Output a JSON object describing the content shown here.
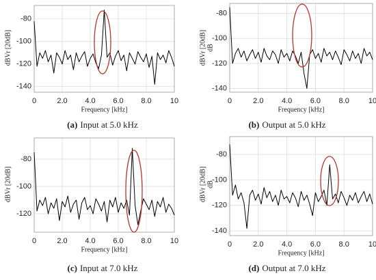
{
  "chart_data": [
    {
      "type": "line",
      "xlabel": "Frequency [kHz]",
      "ylabel": "dBVr [20dB]",
      "caption_label": "(a)",
      "caption": "Input at 5.0 kHz",
      "x": [
        0,
        0.2,
        0.4,
        0.6,
        0.8,
        1,
        1.2,
        1.4,
        1.6,
        1.8,
        2,
        2.2,
        2.4,
        2.6,
        2.8,
        3,
        3.2,
        3.4,
        3.6,
        3.8,
        4,
        4.2,
        4.4,
        4.6,
        4.8,
        5,
        5.2,
        5.4,
        5.6,
        5.8,
        6,
        6.2,
        6.4,
        6.6,
        6.8,
        7,
        7.2,
        7.4,
        7.6,
        7.8,
        8,
        8.2,
        8.4,
        8.6,
        8.8,
        9,
        9.2,
        9.4,
        9.6,
        9.8,
        10
      ],
      "series": [
        {
          "color": "#000000",
          "values": [
            -82,
            -122,
            -110,
            -115,
            -108,
            -118,
            -112,
            -128,
            -110,
            -114,
            -120,
            -108,
            -116,
            -112,
            -125,
            -110,
            -118,
            -113,
            -109,
            -122,
            -115,
            -111,
            -119,
            -124,
            -112,
            -72,
            -114,
            -110,
            -121,
            -113,
            -108,
            -117,
            -112,
            -126,
            -110,
            -115,
            -120,
            -109,
            -114,
            -118,
            -111,
            -123,
            -113,
            -138,
            -110,
            -116,
            -112,
            -119,
            -108,
            -114,
            -122
          ]
        }
      ],
      "xlim": [
        0,
        10
      ],
      "ylim": [
        -145,
        -68
      ],
      "xticks": [
        0,
        {
          "value": 2,
          "label": "2.0"
        },
        {
          "value": 4,
          "label": "4.0"
        },
        {
          "value": 6,
          "label": "6.0"
        },
        {
          "value": 8,
          "label": "8.0"
        },
        10
      ],
      "yticks": [
        -140,
        -120,
        -100,
        -80
      ],
      "grid": true
    },
    {
      "type": "line",
      "xlabel": "Frequency [kHz]",
      "ylabel": "dBVr [20dB]",
      "ylabel2": "dB",
      "caption_label": "(b)",
      "caption": "Output at 5.0 kHz",
      "x": [
        0,
        0.2,
        0.4,
        0.6,
        0.8,
        1,
        1.2,
        1.4,
        1.6,
        1.8,
        2,
        2.2,
        2.4,
        2.6,
        2.8,
        3,
        3.2,
        3.4,
        3.6,
        3.8,
        4,
        4.2,
        4.4,
        4.6,
        4.8,
        5,
        5.2,
        5.4,
        5.6,
        5.8,
        6,
        6.2,
        6.4,
        6.6,
        6.8,
        7,
        7.2,
        7.4,
        7.6,
        7.8,
        8,
        8.2,
        8.4,
        8.6,
        8.8,
        9,
        9.2,
        9.4,
        9.6,
        9.8,
        10
      ],
      "series": [
        {
          "color": "#000000",
          "values": [
            -75,
            -120,
            -112,
            -108,
            -115,
            -110,
            -118,
            -113,
            -109,
            -116,
            -111,
            -119,
            -108,
            -114,
            -117,
            -110,
            -113,
            -120,
            -109,
            -115,
            -112,
            -118,
            -110,
            -114,
            -120,
            -111,
            -128,
            -140,
            -113,
            -109,
            -116,
            -112,
            -119,
            -108,
            -114,
            -111,
            -117,
            -110,
            -115,
            -121,
            -109,
            -113,
            -118,
            -110,
            -116,
            -112,
            -120,
            -108,
            -114,
            -111,
            -117
          ]
        }
      ],
      "xlim": [
        0,
        10
      ],
      "ylim": [
        -143,
        -72
      ],
      "xticks": [
        0,
        {
          "value": 2,
          "label": "2.0"
        },
        {
          "value": 4,
          "label": "4.0"
        },
        {
          "value": 6,
          "label": "6.0"
        },
        {
          "value": 8,
          "label": "8.0"
        },
        10
      ],
      "yticks": [
        -140,
        -120,
        -100,
        -80
      ],
      "grid": true
    },
    {
      "type": "line",
      "xlabel": "Frequency [kHz]",
      "ylabel": "dBVr [20dB]",
      "caption_label": "(c)",
      "caption": "Input at 7.0 kHz",
      "x": [
        0,
        0.2,
        0.4,
        0.6,
        0.8,
        1,
        1.2,
        1.4,
        1.6,
        1.8,
        2,
        2.2,
        2.4,
        2.6,
        2.8,
        3,
        3.2,
        3.4,
        3.6,
        3.8,
        4,
        4.2,
        4.4,
        4.6,
        4.8,
        5,
        5.2,
        5.4,
        5.6,
        5.8,
        6,
        6.2,
        6.4,
        6.6,
        6.8,
        7,
        7.2,
        7.4,
        7.6,
        7.8,
        8,
        8.2,
        8.4,
        8.6,
        8.8,
        9,
        9.2,
        9.4,
        9.6,
        9.8,
        10
      ],
      "series": [
        {
          "color": "#000000",
          "values": [
            -75,
            -118,
            -110,
            -114,
            -108,
            -120,
            -112,
            -116,
            -109,
            -125,
            -111,
            -115,
            -107,
            -119,
            -113,
            -110,
            -124,
            -112,
            -108,
            -117,
            -114,
            -120,
            -109,
            -113,
            -118,
            -111,
            -126,
            -110,
            -115,
            -108,
            -119,
            -112,
            -116,
            -110,
            -121,
            -72,
            -114,
            -128,
            -118,
            -109,
            -113,
            -117,
            -110,
            -122,
            -111,
            -115,
            -108,
            -119,
            -113,
            -116,
            -121
          ]
        }
      ],
      "xlim": [
        0,
        10
      ],
      "ylim": [
        -133.5,
        -64.5
      ],
      "xticks": [
        0,
        {
          "value": 2,
          "label": "2.0"
        },
        {
          "value": 4,
          "label": "4.0"
        },
        {
          "value": 6,
          "label": "6.0"
        },
        {
          "value": 8,
          "label": "8.0"
        },
        10
      ],
      "yticks": [
        -120,
        -100,
        -80
      ],
      "grid": true
    },
    {
      "type": "line",
      "xlabel": "Frequency [kHz]",
      "ylabel": "dBVr [20dB]",
      "ylabel2": "dB",
      "caption_label": "(d)",
      "caption": "Output at 7.0 kHz",
      "x": [
        0,
        0.2,
        0.4,
        0.6,
        0.8,
        1,
        1.2,
        1.4,
        1.6,
        1.8,
        2,
        2.2,
        2.4,
        2.6,
        2.8,
        3,
        3.2,
        3.4,
        3.6,
        3.8,
        4,
        4.2,
        4.4,
        4.6,
        4.8,
        5,
        5.2,
        5.4,
        5.6,
        5.8,
        6,
        6.2,
        6.4,
        6.6,
        6.8,
        7,
        7.2,
        7.4,
        7.6,
        7.8,
        8,
        8.2,
        8.4,
        8.6,
        8.8,
        9,
        9.2,
        9.4,
        9.6,
        9.8,
        10
      ],
      "series": [
        {
          "color": "#000000",
          "values": [
            -72,
            -112,
            -104,
            -115,
            -110,
            -118,
            -138,
            -112,
            -108,
            -116,
            -111,
            -119,
            -106,
            -114,
            -109,
            -117,
            -112,
            -120,
            -108,
            -115,
            -113,
            -118,
            -110,
            -114,
            -121,
            -109,
            -116,
            -112,
            -119,
            -128,
            -110,
            -117,
            -113,
            -108,
            -120,
            -88,
            -115,
            -111,
            -118,
            -109,
            -114,
            -120,
            -112,
            -116,
            -110,
            -118,
            -113,
            -109,
            -117,
            -111,
            -119
          ]
        }
      ],
      "xlim": [
        0,
        10
      ],
      "ylim": [
        -143.7,
        -66
      ],
      "xticks": [
        0,
        {
          "value": 2,
          "label": "2.0"
        },
        {
          "value": 4,
          "label": "4.0"
        },
        {
          "value": 6,
          "label": "6.0"
        },
        {
          "value": 8,
          "label": "8.0"
        },
        10
      ],
      "yticks": [
        -140,
        -120,
        -100,
        -80
      ],
      "grid": true
    }
  ]
}
